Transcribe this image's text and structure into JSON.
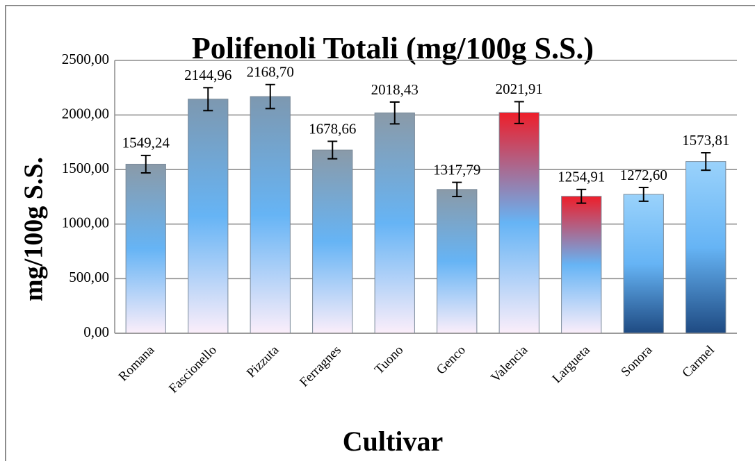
{
  "chart_data": {
    "type": "bar",
    "title": "Polifenoli Totali (mg/100g S.S.)",
    "xlabel": "Cultivar",
    "ylabel": "mg/100g S.S.",
    "categories": [
      "Romana",
      "Fascionello",
      "Pizzuta",
      "Ferragnes",
      "Tuono",
      "Genco",
      "Valencia",
      "Largueta",
      "Sonora",
      "Carmel"
    ],
    "values": [
      1549.24,
      2144.96,
      2168.7,
      1678.66,
      2018.43,
      1317.79,
      2021.91,
      1254.91,
      1272.6,
      1573.81
    ],
    "value_labels": [
      "1549,24",
      "2144,96",
      "2168,70",
      "1678,66",
      "2018,43",
      "1317,79",
      "2021,91",
      "1254,91",
      "1272,60",
      "1573,81"
    ],
    "errors": [
      80,
      105,
      110,
      80,
      100,
      65,
      100,
      63,
      63,
      80
    ],
    "gradients": [
      [
        "#8a9aa8",
        "#66b4f5",
        "#fbeefa"
      ],
      [
        "#7d98b0",
        "#66b4f5",
        "#fbeefa"
      ],
      [
        "#7d98b0",
        "#66b4f5",
        "#fbeefa"
      ],
      [
        "#8a9aa8",
        "#66b4f5",
        "#fbeefa"
      ],
      [
        "#8a9aa8",
        "#66b4f5",
        "#fbeefa"
      ],
      [
        "#8a9aa8",
        "#66b4f5",
        "#fbeefa"
      ],
      [
        "#ee1e2a",
        "#66b4f5",
        "#fbeefa"
      ],
      [
        "#ee1e2a",
        "#66b4f5",
        "#fbeefa"
      ],
      [
        "#9ad2fb",
        "#66b4f5",
        "#1e4a82"
      ],
      [
        "#9ad2fb",
        "#66b4f5",
        "#1e4a82"
      ]
    ],
    "ylim": [
      0,
      2500
    ],
    "yticks": [
      {
        "value": 0,
        "label": "0,00"
      },
      {
        "value": 500,
        "label": "500,00"
      },
      {
        "value": 1000,
        "label": "1000,00"
      },
      {
        "value": 1500,
        "label": "1500,00"
      },
      {
        "value": 2000,
        "label": "2000,00"
      },
      {
        "value": 2500,
        "label": "2500,00"
      }
    ],
    "grid": true
  }
}
